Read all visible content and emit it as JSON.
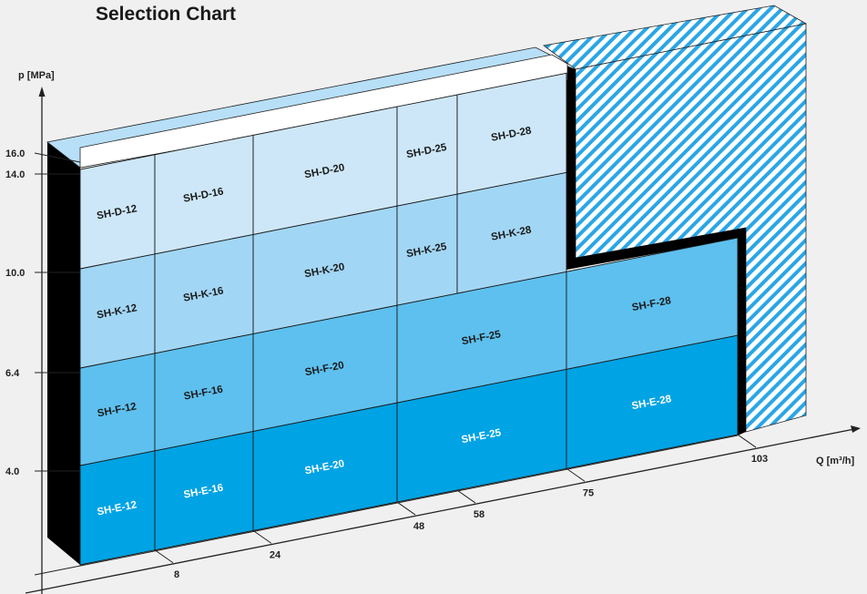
{
  "chart_data": {
    "type": "bar",
    "title": "Selection Chart",
    "ylabel": "p [MPa]",
    "xlabel": "Q [m³/h]",
    "y_ticks": [
      "4.0",
      "6.4",
      "10.0",
      "14.0",
      "16.0"
    ],
    "x_ticks": [
      "8",
      "24",
      "48",
      "58",
      "75",
      "103"
    ],
    "columns": [
      {
        "size": "12",
        "q_max": 8
      },
      {
        "size": "16",
        "q_max": 24
      },
      {
        "size": "20",
        "q_max": 48
      },
      {
        "size": "25",
        "q_max": 58
      },
      {
        "size": "28",
        "q_max": 75
      }
    ],
    "series": [
      {
        "name": "SH-E",
        "p_max": 4.0,
        "color": "#00a3e3",
        "labels": [
          "SH-E-12",
          "SH-E-16",
          "SH-E-20",
          "SH-E-25",
          "SH-E-28"
        ]
      },
      {
        "name": "SH-F",
        "p_max": 6.4,
        "color": "#5ec0ee",
        "labels": [
          "SH-F-12",
          "SH-F-16",
          "SH-F-20",
          "SH-F-25",
          "SH-F-28"
        ]
      },
      {
        "name": "SH-K",
        "p_max": 10.0,
        "color": "#a2d6f5",
        "labels": [
          "SH-K-12",
          "SH-K-16",
          "SH-K-20",
          "SH-K-25",
          "SH-K-28"
        ]
      },
      {
        "name": "SH-D",
        "p_max": 14.0,
        "color": "#cde7f8",
        "labels": [
          "SH-D-12",
          "SH-D-16",
          "SH-D-20",
          "SH-D-25",
          "SH-D-28"
        ]
      }
    ],
    "colors": {
      "front_edge": "#ffffff",
      "shadow": "#000000",
      "hatch": "#2aa6e6",
      "top": "#b7dff7"
    }
  }
}
